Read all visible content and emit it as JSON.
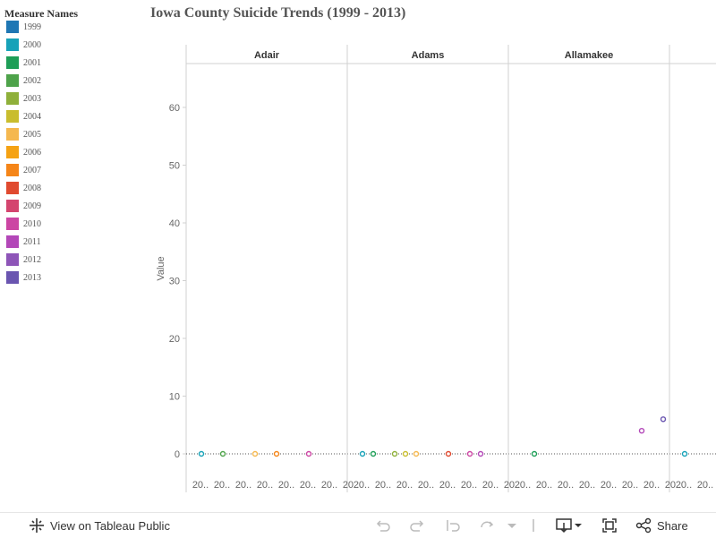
{
  "chart_title": "Iowa  County  Suicide  Trends  (1999  -  2013)",
  "legend": {
    "title": "Measure  Names",
    "items": [
      {
        "label": "1999",
        "color": "#1f77b4"
      },
      {
        "label": "2000",
        "color": "#17a2b8"
      },
      {
        "label": "2001",
        "color": "#1e9e57"
      },
      {
        "label": "2002",
        "color": "#4ea34a"
      },
      {
        "label": "2003",
        "color": "#8fb03a"
      },
      {
        "label": "2004",
        "color": "#c9bd2e"
      },
      {
        "label": "2005",
        "color": "#f5b84f"
      },
      {
        "label": "2006",
        "color": "#f5a213"
      },
      {
        "label": "2007",
        "color": "#f58518"
      },
      {
        "label": "2008",
        "color": "#e04a2f"
      },
      {
        "label": "2009",
        "color": "#d4456f"
      },
      {
        "label": "2010",
        "color": "#cc45a3"
      },
      {
        "label": "2011",
        "color": "#b347b8"
      },
      {
        "label": "2012",
        "color": "#8e55b8"
      },
      {
        "label": "2013",
        "color": "#6a55b0"
      }
    ]
  },
  "chart_data": {
    "type": "scatter",
    "ylabel": "Value",
    "ylim": [
      0,
      68
    ],
    "yticks": [
      0,
      10,
      20,
      30,
      40,
      50,
      60
    ],
    "xtick_label": "20..",
    "panels": [
      {
        "name": "Adair",
        "points": [
          {
            "year": "2000",
            "value": 0
          },
          {
            "year": "2002",
            "value": 0
          },
          {
            "year": "2005",
            "value": 0
          },
          {
            "year": "2007",
            "value": 0
          },
          {
            "year": "2010",
            "value": 0
          }
        ]
      },
      {
        "name": "Adams",
        "points": [
          {
            "year": "2000",
            "value": 0
          },
          {
            "year": "2001",
            "value": 0
          },
          {
            "year": "2003",
            "value": 0
          },
          {
            "year": "2004",
            "value": 0
          },
          {
            "year": "2005",
            "value": 0
          },
          {
            "year": "2008",
            "value": 0
          },
          {
            "year": "2010",
            "value": 0
          },
          {
            "year": "2011",
            "value": 0
          }
        ]
      },
      {
        "name": "Allamakee",
        "points": [
          {
            "year": "2001",
            "value": 0
          },
          {
            "year": "2011",
            "value": 4
          },
          {
            "year": "2013",
            "value": 6
          }
        ]
      },
      {
        "name": "",
        "points": [
          {
            "year": "2000",
            "value": 0
          }
        ]
      }
    ]
  },
  "toolbar": {
    "view_label": "View on Tableau Public",
    "share_label": "Share"
  }
}
